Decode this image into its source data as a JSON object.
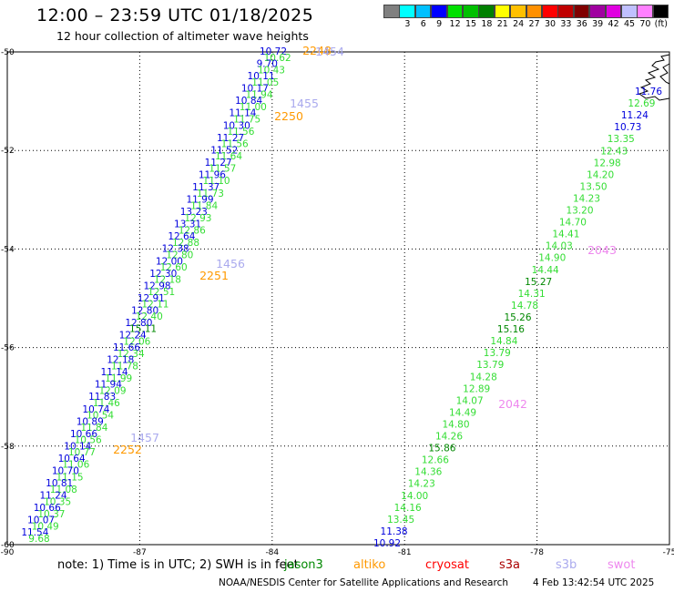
{
  "header": {
    "title": "12:00 – 23:59 UTC 01/18/2025",
    "subtitle": "12 hour collection of altimeter wave heights"
  },
  "color_scale": {
    "unit": "(ft)",
    "swatches": [
      {
        "color": "#808080",
        "label": ""
      },
      {
        "color": "#00ffff",
        "label": "3"
      },
      {
        "color": "#00c0ff",
        "label": "6"
      },
      {
        "color": "#0000ff",
        "label": "9"
      },
      {
        "color": "#00e000",
        "label": "12"
      },
      {
        "color": "#00c000",
        "label": "15"
      },
      {
        "color": "#008000",
        "label": "18"
      },
      {
        "color": "#ffff00",
        "label": "21"
      },
      {
        "color": "#ffc000",
        "label": "24"
      },
      {
        "color": "#ff9000",
        "label": "27"
      },
      {
        "color": "#ff0000",
        "label": "30"
      },
      {
        "color": "#c00000",
        "label": "33"
      },
      {
        "color": "#800000",
        "label": "36"
      },
      {
        "color": "#a000a0",
        "label": "39"
      },
      {
        "color": "#e000e0",
        "label": "42"
      },
      {
        "color": "#c0c0ff",
        "label": "45"
      },
      {
        "color": "#ff80ff",
        "label": "70"
      },
      {
        "color": "#000000",
        "label": ""
      }
    ]
  },
  "map": {
    "lon_range": [
      -90,
      -75
    ],
    "lat_range": [
      -60,
      -50
    ],
    "lon_ticks": [
      "-90",
      "-87",
      "-84",
      "-81",
      "-78",
      "-75"
    ],
    "lat_ticks": [
      "-50",
      "-52",
      "-54",
      "-56",
      "-58",
      "-60"
    ],
    "colors": {
      "blue": "#0000dd",
      "green": "#33dd33",
      "darkgreen": "#008800",
      "orange": "#ff9900",
      "lav": "#aaaaee",
      "pink": "#ee88ee"
    },
    "track1": [
      "10.72",
      "10.62",
      "9.70",
      "10.43",
      "10.11",
      "11.05",
      "10.17",
      "11.94",
      "10.84",
      "11.00",
      "11.14",
      "11.75",
      "10.30",
      "11.56",
      "11.27",
      "11.56",
      "11.52",
      "11.64",
      "11.27",
      "11.57",
      "11.96",
      "11.10",
      "11.37",
      "11.73",
      "11.99",
      "11.84",
      "13.23",
      "12.93",
      "13.31",
      "12.86",
      "12.64",
      "12.88",
      "12.38",
      "12.80",
      "12.00",
      "12.60",
      "12.30",
      "12.18",
      "12.98",
      "12.51",
      "12.91",
      "12.11",
      "12.80",
      "12.40",
      "12.80",
      "15.11",
      "12.24",
      "12.06",
      "11.66",
      "12.34",
      "12.18",
      "11.78",
      "11.14",
      "11.99",
      "11.94",
      "12.09",
      "11.83",
      "11.46",
      "10.74",
      "10.54",
      "10.89",
      "11.84",
      "10.66",
      "10.56",
      "10.14",
      "10.77",
      "10.64",
      "11.06",
      "10.70",
      "11.15",
      "10.81",
      "11.08",
      "11.24",
      "10.35",
      "10.66",
      "10.37",
      "10.07",
      "10.49",
      "11.54",
      "9.68"
    ],
    "track1_labels": [
      {
        "text": "2248",
        "kind": "orange"
      },
      {
        "text": "1454",
        "kind": "lav"
      },
      {
        "text": "1455",
        "kind": "lav"
      },
      {
        "text": "2250",
        "kind": "orange"
      },
      {
        "text": "1456",
        "kind": "lav"
      },
      {
        "text": "2251",
        "kind": "orange"
      },
      {
        "text": "1457",
        "kind": "lav"
      },
      {
        "text": "2252",
        "kind": "orange"
      }
    ],
    "track2": [
      "11.76",
      "12.69",
      "11.24",
      "10.73",
      "13.35",
      "12.43",
      "12.98",
      "14.20",
      "13.50",
      "14.23",
      "13.20",
      "14.70",
      "14.41",
      "14.03",
      "14.90",
      "14.44",
      "15.27",
      "14.31",
      "14.78",
      "15.26",
      "15.16",
      "14.84",
      "13.79",
      "13.79",
      "14.28",
      "12.89",
      "14.07",
      "14.49",
      "14.80",
      "14.26",
      "15.86",
      "12.66",
      "14.36",
      "14.23",
      "14.00",
      "14.16",
      "13.45",
      "11.38",
      "10.92"
    ],
    "track2_labels": [
      {
        "text": "2043",
        "kind": "pink"
      },
      {
        "text": "2042",
        "kind": "pink"
      }
    ]
  },
  "footer": {
    "note": "note:  1) Time is in UTC;  2) SWH is in feet",
    "legend": [
      {
        "name": "jason3",
        "color": "#008800"
      },
      {
        "name": "altiko",
        "color": "#ff9900"
      },
      {
        "name": "cryosat",
        "color": "#ff0000"
      },
      {
        "name": "s3a",
        "color": "#aa0000"
      },
      {
        "name": "s3b",
        "color": "#aaaaee"
      },
      {
        "name": "swot",
        "color": "#ee88ee"
      }
    ],
    "credit": "NOAA/NESDIS Center for Satellite Applications and Research",
    "stamp": "4 Feb 13:42:54 UTC 2025"
  }
}
